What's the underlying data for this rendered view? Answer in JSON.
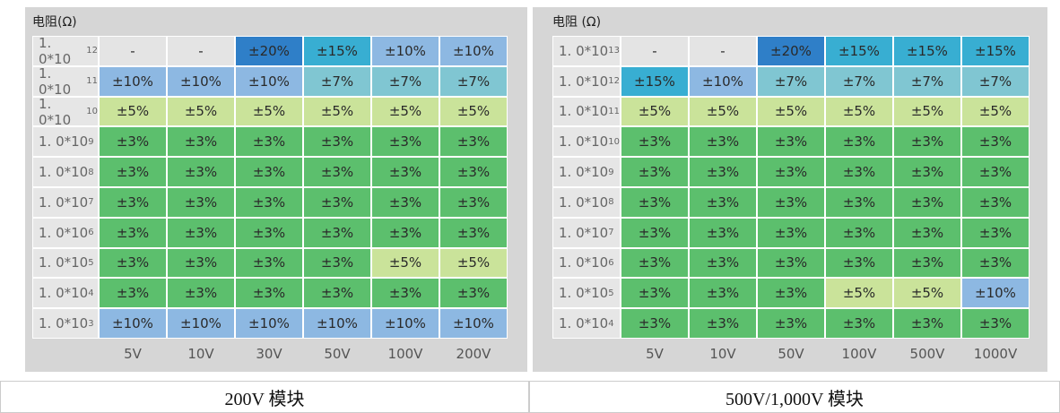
{
  "panels": [
    {
      "title": "电阻(Ω)",
      "rows": [
        {
          "base": "1. 0*10",
          "exp": "12",
          "cells": [
            "-",
            "-",
            "±20%",
            "±15%",
            "±10%",
            "±10%"
          ]
        },
        {
          "base": "1. 0*10",
          "exp": "11",
          "cells": [
            "±10%",
            "±10%",
            "±10%",
            "±7%",
            "±7%",
            "±7%"
          ]
        },
        {
          "base": "1. 0*10",
          "exp": "10",
          "cells": [
            "±5%",
            "±5%",
            "±5%",
            "±5%",
            "±5%",
            "±5%"
          ]
        },
        {
          "base": "1. 0*10",
          "exp": "9",
          "cells": [
            "±3%",
            "±3%",
            "±3%",
            "±3%",
            "±3%",
            "±3%"
          ]
        },
        {
          "base": "1. 0*10",
          "exp": "8",
          "cells": [
            "±3%",
            "±3%",
            "±3%",
            "±3%",
            "±3%",
            "±3%"
          ]
        },
        {
          "base": "1. 0*10",
          "exp": "7",
          "cells": [
            "±3%",
            "±3%",
            "±3%",
            "±3%",
            "±3%",
            "±3%"
          ]
        },
        {
          "base": "1. 0*10",
          "exp": "6",
          "cells": [
            "±3%",
            "±3%",
            "±3%",
            "±3%",
            "±3%",
            "±3%"
          ]
        },
        {
          "base": "1. 0*10",
          "exp": "5",
          "cells": [
            "±3%",
            "±3%",
            "±3%",
            "±3%",
            "±5%",
            "±5%"
          ]
        },
        {
          "base": "1. 0*10",
          "exp": "4",
          "cells": [
            "±3%",
            "±3%",
            "±3%",
            "±3%",
            "±3%",
            "±3%"
          ]
        },
        {
          "base": "1. 0*10",
          "exp": "3",
          "cells": [
            "±10%",
            "±10%",
            "±10%",
            "±10%",
            "±10%",
            "±10%"
          ]
        }
      ],
      "columns": [
        "5V",
        "10V",
        "30V",
        "50V",
        "100V",
        "200V"
      ],
      "caption": "200V 模块"
    },
    {
      "title": "电阻 (Ω)",
      "rows": [
        {
          "base": "1. 0*10",
          "exp": "13",
          "cells": [
            "-",
            "-",
            "±20%",
            "±15%",
            "±15%",
            "±15%"
          ]
        },
        {
          "base": "1. 0*10",
          "exp": "12",
          "cells": [
            "±15%",
            "±10%",
            "±7%",
            "±7%",
            "±7%",
            "±7%"
          ]
        },
        {
          "base": "1. 0*10",
          "exp": "11",
          "cells": [
            "±5%",
            "±5%",
            "±5%",
            "±5%",
            "±5%",
            "±5%"
          ]
        },
        {
          "base": "1. 0*10",
          "exp": "10",
          "cells": [
            "±3%",
            "±3%",
            "±3%",
            "±3%",
            "±3%",
            "±3%"
          ]
        },
        {
          "base": "1. 0*10",
          "exp": "9",
          "cells": [
            "±3%",
            "±3%",
            "±3%",
            "±3%",
            "±3%",
            "±3%"
          ]
        },
        {
          "base": "1. 0*10",
          "exp": "8",
          "cells": [
            "±3%",
            "±3%",
            "±3%",
            "±3%",
            "±3%",
            "±3%"
          ]
        },
        {
          "base": "1. 0*10",
          "exp": "7",
          "cells": [
            "±3%",
            "±3%",
            "±3%",
            "±3%",
            "±3%",
            "±3%"
          ]
        },
        {
          "base": "1. 0*10",
          "exp": "6",
          "cells": [
            "±3%",
            "±3%",
            "±3%",
            "±3%",
            "±3%",
            "±3%"
          ]
        },
        {
          "base": "1. 0*10",
          "exp": "5",
          "cells": [
            "±3%",
            "±3%",
            "±3%",
            "±5%",
            "±5%",
            "±10%"
          ]
        },
        {
          "base": "1. 0*10",
          "exp": "4",
          "cells": [
            "±3%",
            "±3%",
            "±3%",
            "±3%",
            "±3%",
            "±3%"
          ]
        }
      ],
      "columns": [
        "5V",
        "10V",
        "50V",
        "100V",
        "500V",
        "1000V"
      ],
      "caption": "500V/1,000V 模块"
    }
  ],
  "cell_colors": {
    "-": "#e4e4e4",
    "±20%": "#2f7fc8",
    "±15%": "#38aed2",
    "±10%": "#8db8e2",
    "±7%": "#80c6d2",
    "±5%": "#cae39a",
    "±3%": "#5cbf6d"
  }
}
